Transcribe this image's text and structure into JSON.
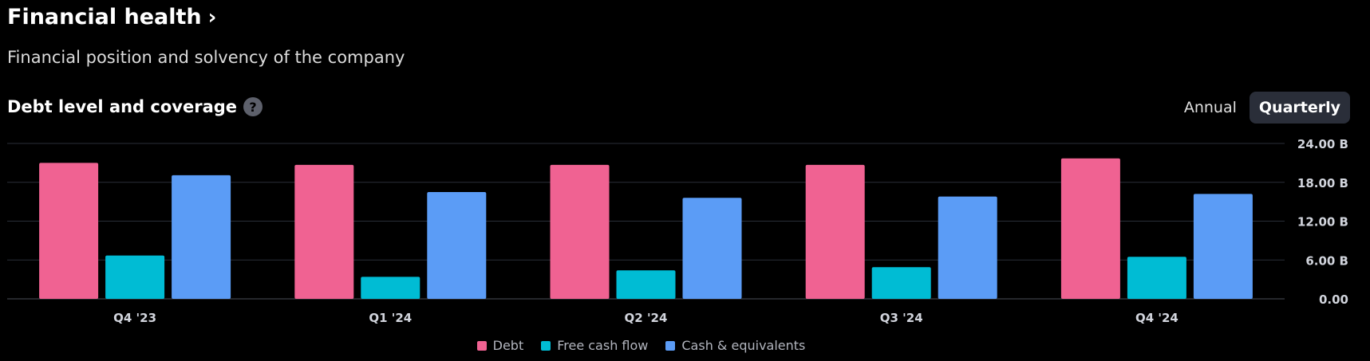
{
  "header": {
    "title": "Financial health",
    "chevron": "›"
  },
  "subtitle": "Financial position and solvency of the company",
  "section": {
    "title": "Debt level and coverage",
    "help_icon": "?"
  },
  "toggle": {
    "annual": "Annual",
    "quarterly": "Quarterly",
    "active": "Quarterly"
  },
  "colors": {
    "debt": "#f06292",
    "fcf": "#00bcd4",
    "cash": "#5b9cf6",
    "grid": "#2a2e39",
    "axis_text": "#d1d4dc"
  },
  "chart_data": {
    "type": "bar",
    "categories": [
      "Q4 '23",
      "Q1 '24",
      "Q2 '24",
      "Q3 '24",
      "Q4 '24"
    ],
    "series": [
      {
        "name": "Debt",
        "values": [
          21.0,
          20.7,
          20.7,
          20.7,
          21.7
        ]
      },
      {
        "name": "Free cash flow",
        "values": [
          6.7,
          3.4,
          4.4,
          4.9,
          6.5
        ]
      },
      {
        "name": "Cash & equivalents",
        "values": [
          19.1,
          16.5,
          15.6,
          15.8,
          16.2
        ]
      }
    ],
    "y_ticks": [
      "24.00 B",
      "18.00 B",
      "12.00 B",
      "6.00 B",
      "0.00"
    ],
    "ylim": [
      0,
      24
    ],
    "grid": true,
    "legend": "bottom-center"
  }
}
